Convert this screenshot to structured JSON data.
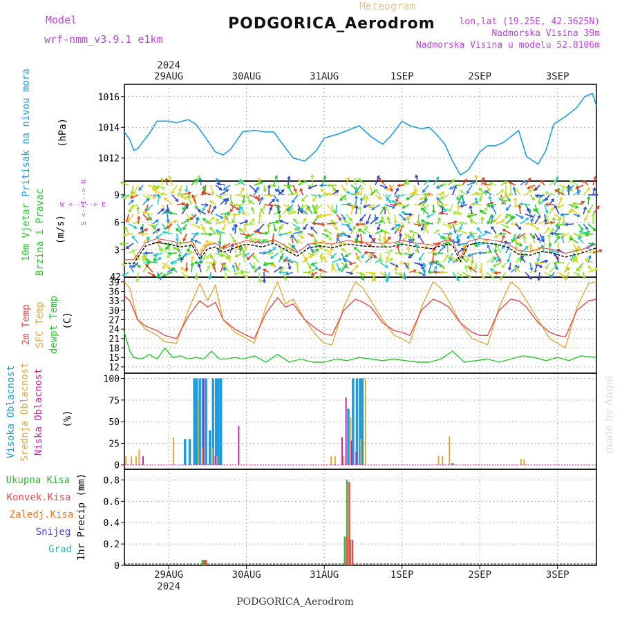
{
  "header": {
    "model_label": "Model",
    "model_name": "wrf-nmm_v3.9.1 e1km",
    "product": "Meteogram",
    "station": "PODGORICA_Aerodrom",
    "lonlat": "lon,lat (19.25E, 42.3625N)",
    "altitude": "Nadmorska Visina 39m",
    "model_altitude": "Nadmorska Visina u modelu 52.8106m",
    "credit": "made by Angel",
    "footer": "PODGORICA_Aerodrom"
  },
  "colors": {
    "pressure": "#1a9ee0",
    "temp2m": "#e84a4a",
    "sfc_temp": "#e0a83a",
    "dewpoint": "#22cc22",
    "high_cloud": "#1a9ee0",
    "mid_cloud": "#e0a83a",
    "low_cloud": "#cc22aa",
    "total_precip": "#33bb33",
    "conv_precip": "#e84a4a",
    "frozen": "#f07a2a",
    "snow": "#4444dd",
    "hail": "#22bbbb",
    "model_text": "#bb44dd",
    "product_text": "#e8c890"
  },
  "chart_data": {
    "type": "meteogram",
    "x_axis": {
      "unit": "day",
      "top_year": "2024",
      "bottom_year": "2024",
      "labels": [
        "29AUG",
        "30AUG",
        "31AUG",
        "1SEP",
        "2SEP",
        "3SEP"
      ],
      "label_days": [
        1,
        2,
        3,
        4,
        5,
        6
      ],
      "range": [
        0.43,
        6.5
      ]
    },
    "panels": [
      {
        "id": "pressure",
        "title": "Pritisak na nivou mora",
        "unit_label": "(hPa)",
        "ylim": [
          1010.5,
          1016.8
        ],
        "yticks": [
          1012,
          1014,
          1016
        ],
        "series": [
          {
            "name": "Pritisak na nivou mora",
            "x": [
              0.43,
              0.5,
              0.55,
              0.6,
              0.75,
              0.85,
              1.0,
              1.1,
              1.25,
              1.35,
              1.45,
              1.6,
              1.7,
              1.8,
              1.95,
              2.1,
              2.25,
              2.35,
              2.45,
              2.6,
              2.75,
              2.9,
              3.0,
              3.2,
              3.3,
              3.45,
              3.6,
              3.75,
              3.85,
              4.0,
              4.1,
              4.25,
              4.35,
              4.45,
              4.55,
              4.65,
              4.75,
              4.85,
              5.0,
              5.1,
              5.2,
              5.3,
              5.5,
              5.6,
              5.75,
              5.85,
              5.95,
              6.1,
              6.25,
              6.35,
              6.45,
              6.5
            ],
            "y": [
              1013.7,
              1013.2,
              1012.5,
              1012.6,
              1013.6,
              1014.4,
              1014.4,
              1014.3,
              1014.5,
              1014.2,
              1013.5,
              1012.4,
              1012.2,
              1012.6,
              1013.7,
              1013.8,
              1013.7,
              1013.7,
              1013.0,
              1012.0,
              1011.8,
              1012.5,
              1013.3,
              1013.6,
              1013.8,
              1014.1,
              1013.4,
              1012.9,
              1013.4,
              1014.4,
              1014.1,
              1013.9,
              1014.0,
              1013.5,
              1012.9,
              1011.8,
              1010.9,
              1011.2,
              1012.4,
              1012.8,
              1012.8,
              1013.0,
              1013.8,
              1012.1,
              1011.6,
              1012.5,
              1014.2,
              1014.7,
              1015.3,
              1016.0,
              1016.2,
              1015.4
            ]
          }
        ]
      },
      {
        "id": "wind",
        "title_lines": [
          "10m Vjetar",
          "Brzina i Pravac"
        ],
        "unit_label": "(m/s)",
        "compass": "W <--I--> E",
        "compass_vertical": "S <--I--> N",
        "ylim": [
          0,
          10.5
        ],
        "yticks": [
          3,
          6,
          9
        ],
        "series": [
          {
            "name": "wind speed",
            "x": [
              0.43,
              0.55,
              0.7,
              0.85,
              1.0,
              1.15,
              1.3,
              1.4,
              1.5,
              1.6,
              1.7,
              1.85,
              2.0,
              2.2,
              2.35,
              2.5,
              2.65,
              2.8,
              2.95,
              3.1,
              3.3,
              3.5,
              3.7,
              3.85,
              4.0,
              4.2,
              4.4,
              4.55,
              4.65,
              4.75,
              4.85,
              5.0,
              5.2,
              5.35,
              5.5,
              5.65,
              5.8,
              5.95,
              6.1,
              6.3,
              6.5
            ],
            "y": [
              1.5,
              1.5,
              3.4,
              3.8,
              3.6,
              3.3,
              3.5,
              2.0,
              3.1,
              3.3,
              2.7,
              3.2,
              3.6,
              3.3,
              3.7,
              3.0,
              2.3,
              3.2,
              3.4,
              3.2,
              3.6,
              3.4,
              3.3,
              3.3,
              3.6,
              3.3,
              3.1,
              3.6,
              3.5,
              1.7,
              3.5,
              3.8,
              3.6,
              3.3,
              2.5,
              2.4,
              2.8,
              2.6,
              2.2,
              2.6,
              3.2
            ]
          }
        ]
      },
      {
        "id": "temperature",
        "title_lines": [
          "2m Temp",
          "SFC Temp",
          "dewpt Temp"
        ],
        "unit_label": "(C)",
        "ylim": [
          10,
          40.5
        ],
        "yticks": [
          12,
          15,
          18,
          21,
          24,
          27,
          30,
          33,
          36,
          39
        ],
        "series": [
          {
            "name": "2m Temp",
            "x": [
              0.43,
              0.5,
              0.6,
              0.7,
              0.85,
              0.95,
              1.1,
              1.25,
              1.4,
              1.5,
              1.6,
              1.7,
              1.85,
              2.0,
              2.1,
              2.25,
              2.4,
              2.5,
              2.6,
              2.75,
              2.9,
              3.0,
              3.1,
              3.25,
              3.4,
              3.5,
              3.6,
              3.75,
              3.9,
              4.0,
              4.1,
              4.25,
              4.4,
              4.5,
              4.6,
              4.75,
              4.9,
              5.0,
              5.1,
              5.25,
              5.4,
              5.5,
              5.6,
              5.75,
              5.9,
              6.0,
              6.1,
              6.25,
              6.4,
              6.5
            ],
            "y": [
              34.5,
              33,
              27,
              25,
              23.5,
              22,
              21,
              28,
              33,
              31,
              32.5,
              27,
              24,
              22,
              21,
              29,
              34,
              31,
              32,
              27,
              24,
              22.5,
              22,
              30,
              33.5,
              32.5,
              31,
              26,
              23.5,
              23,
              22,
              30,
              33.5,
              32.5,
              31,
              26,
              23,
              22,
              22,
              30,
              33.5,
              33,
              31,
              26,
              23,
              22,
              21.5,
              30,
              33,
              33.5
            ]
          },
          {
            "name": "SFC Temp",
            "x": [
              0.43,
              0.5,
              0.6,
              0.7,
              0.85,
              0.95,
              1.1,
              1.25,
              1.4,
              1.5,
              1.6,
              1.7,
              1.85,
              2.0,
              2.1,
              2.25,
              2.4,
              2.5,
              2.6,
              2.75,
              2.9,
              3.0,
              3.1,
              3.25,
              3.4,
              3.5,
              3.6,
              3.75,
              3.9,
              4.0,
              4.1,
              4.25,
              4.4,
              4.5,
              4.6,
              4.75,
              4.9,
              5.0,
              5.1,
              5.25,
              5.4,
              5.5,
              5.6,
              5.75,
              5.9,
              6.0,
              6.1,
              6.25,
              6.4,
              6.5
            ],
            "y": [
              39,
              37,
              27,
              24,
              22,
              20,
              19.5,
              30,
              38.5,
              33,
              38,
              27,
              23,
              21,
              19.5,
              31,
              39,
              32,
              33.5,
              27,
              22,
              19.5,
              19,
              31,
              39,
              37,
              33,
              27,
              22,
              21,
              19.5,
              31,
              39,
              37,
              33,
              26,
              21,
              20,
              19,
              31,
              39,
              37,
              33,
              27,
              21,
              19.5,
              18,
              31,
              38.5,
              39
            ]
          },
          {
            "name": "dewpt Temp",
            "x": [
              0.43,
              0.5,
              0.55,
              0.65,
              0.75,
              0.85,
              0.95,
              1.05,
              1.15,
              1.25,
              1.35,
              1.45,
              1.55,
              1.65,
              1.75,
              1.85,
              1.95,
              2.1,
              2.25,
              2.4,
              2.55,
              2.7,
              2.85,
              3.0,
              3.15,
              3.3,
              3.45,
              3.6,
              3.75,
              3.9,
              4.05,
              4.2,
              4.35,
              4.5,
              4.65,
              4.8,
              4.95,
              5.1,
              5.25,
              5.4,
              5.55,
              5.7,
              5.85,
              6.0,
              6.15,
              6.3,
              6.5
            ],
            "y": [
              23,
              17,
              15,
              14.5,
              16,
              14.5,
              18,
              15,
              15.5,
              14.5,
              15,
              14.5,
              17,
              14.5,
              14.5,
              15,
              14.5,
              15.5,
              13.5,
              16,
              13.5,
              14.5,
              13.5,
              13.5,
              14.5,
              14,
              15,
              14.5,
              14,
              14.5,
              14,
              13.5,
              13.5,
              14.5,
              17,
              13.5,
              14,
              14.5,
              13.5,
              14.5,
              15.5,
              15,
              14,
              15,
              14,
              15.5,
              15
            ]
          }
        ]
      },
      {
        "id": "cloud",
        "title_lines": [
          "Visoka Oblacnost",
          "Srednja Oblacnost",
          "Niska Oblacnost"
        ],
        "unit_label": "(%)",
        "ylim": [
          -5,
          106
        ],
        "yticks": [
          0,
          25,
          50,
          75,
          100
        ],
        "series": [
          {
            "name": "Visoka Oblacnost",
            "x": [
              1.21,
              1.27,
              1.33,
              1.36,
              1.4,
              1.44,
              1.48,
              1.53,
              1.57,
              1.61,
              1.64,
              1.67,
              3.31,
              3.37,
              3.42,
              3.46,
              3.49,
              4.65
            ],
            "y": [
              30,
              30,
              100,
              100,
              100,
              100,
              100,
              40,
              100,
              100,
              100,
              100,
              65,
              100,
              100,
              100,
              100,
              2
            ]
          },
          {
            "name": "Srednja Oblacnost",
            "x": [
              0.45,
              0.52,
              0.58,
              0.62,
              1.06,
              1.38,
              1.43,
              1.56,
              1.62,
              3.09,
              3.14,
              3.25,
              3.34,
              3.47,
              3.53,
              4.47,
              4.52,
              4.61,
              5.53,
              5.57
            ],
            "y": [
              10,
              10,
              10,
              18,
              32,
              75,
              20,
              20,
              10,
              10,
              10,
              10,
              55,
              30,
              100,
              10,
              10,
              33,
              7,
              7
            ]
          },
          {
            "name": "Niska Oblacnost",
            "x": [
              0.67,
              1.45,
              1.6,
              1.9,
              3.23,
              3.28,
              3.35,
              3.41
            ],
            "y": [
              10,
              100,
              10,
              45,
              32,
              78,
              28,
              15
            ]
          }
        ]
      },
      {
        "id": "precip",
        "title": "1hr Precip",
        "unit_label": "(mm)",
        "legend": [
          "Ukupna Kisa",
          "Konvek.Kisa",
          "Zaledj.Kisa",
          "Snijeg",
          "Grad"
        ],
        "ylim": [
          0,
          0.9
        ],
        "yticks": [
          0,
          0.2,
          0.4,
          0.6,
          0.8
        ],
        "series": [
          {
            "name": "Ukupna Kisa",
            "x": [
              1.44,
              1.46,
              3.27,
              3.3,
              3.34
            ],
            "y": [
              0.05,
              0.05,
              0.27,
              0.8,
              0.24
            ]
          },
          {
            "name": "Konvek.Kisa",
            "x": [
              1.45,
              1.47,
              3.28,
              3.31,
              3.35
            ],
            "y": [
              0.05,
              0.05,
              0.26,
              0.78,
              0.24
            ]
          }
        ]
      }
    ]
  }
}
